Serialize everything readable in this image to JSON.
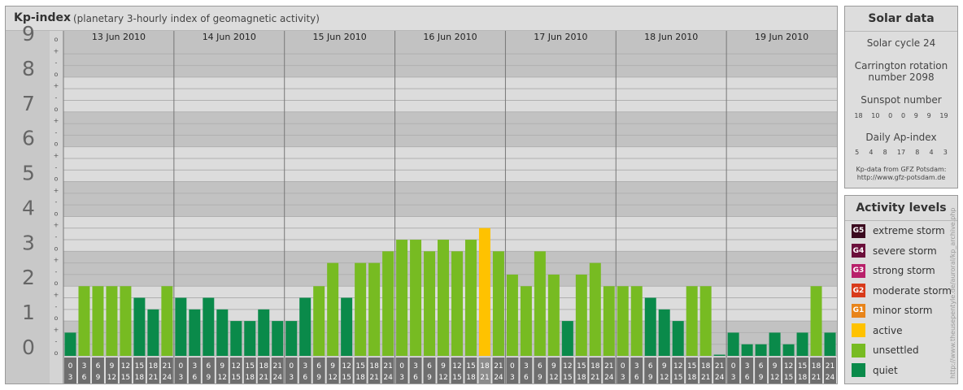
{
  "header": {
    "title": "Kp-index",
    "subtitle": "(planetary 3-hourly index of geomagnetic activity)"
  },
  "chart_data": {
    "type": "bar",
    "ylim": [
      0,
      9
    ],
    "y_major_labels": [
      "0",
      "1",
      "2",
      "3",
      "4",
      "5",
      "6",
      "7",
      "8",
      "9"
    ],
    "y_minor_labels": [
      "o",
      "-",
      "+"
    ],
    "days": [
      "13 Jun 2010",
      "14 Jun 2010",
      "15 Jun 2010",
      "16 Jun 2010",
      "17 Jun 2010",
      "18 Jun 2010",
      "19 Jun 2010"
    ],
    "interval_start_labels": [
      "0",
      "3",
      "6",
      "9",
      "12",
      "15",
      "18",
      "21"
    ],
    "interval_end_labels": [
      "3",
      "6",
      "9",
      "12",
      "15",
      "18",
      "21",
      "24"
    ],
    "values": [
      0.667,
      2.0,
      2.0,
      2.0,
      2.0,
      1.667,
      1.333,
      2.0,
      1.667,
      1.333,
      1.667,
      1.333,
      1.0,
      1.0,
      1.333,
      1.0,
      1.0,
      1.667,
      2.0,
      2.667,
      1.667,
      2.667,
      2.667,
      3.0,
      3.333,
      3.333,
      3.0,
      3.333,
      3.0,
      3.333,
      3.667,
      3.0,
      2.333,
      2.0,
      3.0,
      2.333,
      1.0,
      2.333,
      2.667,
      2.0,
      2.0,
      2.0,
      1.667,
      1.333,
      1.0,
      2.0,
      2.0,
      0.0,
      0.667,
      0.333,
      0.333,
      0.667,
      0.333,
      0.667,
      2.0,
      0.667
    ],
    "levels": [
      "quiet",
      "unsettled",
      "unsettled",
      "unsettled",
      "unsettled",
      "quiet",
      "quiet",
      "unsettled",
      "quiet",
      "quiet",
      "quiet",
      "quiet",
      "quiet",
      "quiet",
      "quiet",
      "quiet",
      "quiet",
      "quiet",
      "unsettled",
      "unsettled",
      "quiet",
      "unsettled",
      "unsettled",
      "unsettled",
      "unsettled",
      "unsettled",
      "unsettled",
      "unsettled",
      "unsettled",
      "unsettled",
      "active",
      "unsettled",
      "unsettled",
      "unsettled",
      "unsettled",
      "unsettled",
      "quiet",
      "unsettled",
      "unsettled",
      "unsettled",
      "unsettled",
      "unsettled",
      "quiet",
      "quiet",
      "quiet",
      "unsettled",
      "unsettled",
      "quiet",
      "quiet",
      "quiet",
      "quiet",
      "quiet",
      "quiet",
      "quiet",
      "unsettled",
      "quiet"
    ],
    "level_colors": {
      "quiet": "#0a8a4a",
      "unsettled": "#77bb22",
      "active": "#ffc200"
    }
  },
  "solar": {
    "title": "Solar data",
    "cycle": "Solar cycle 24",
    "carrington_line1": "Carrington rotation",
    "carrington_line2": "number 2098",
    "sunspot_label": "Sunspot number",
    "sunspot_values": [
      "18",
      "10",
      "0",
      "0",
      "9",
      "9",
      "19"
    ],
    "ap_label": "Daily Ap-index",
    "ap_values": [
      "5",
      "4",
      "8",
      "17",
      "8",
      "4",
      "3"
    ],
    "credit_line1": "Kp-data from GFZ Potsdam:",
    "credit_line2": "http://www.gfz-potsdam.de"
  },
  "activity": {
    "title": "Activity levels",
    "items": [
      {
        "code": "G5",
        "label": "extreme storm",
        "color": "#3b0a1f"
      },
      {
        "code": "G4",
        "label": "severe storm",
        "color": "#6b0f3b"
      },
      {
        "code": "G3",
        "label": "strong storm",
        "color": "#b8206a"
      },
      {
        "code": "G2",
        "label": "moderate storm",
        "color": "#d83a1a"
      },
      {
        "code": "G1",
        "label": "minor storm",
        "color": "#e8841a"
      },
      {
        "code": "",
        "label": "active",
        "color": "#ffc200"
      },
      {
        "code": "",
        "label": "unsettled",
        "color": "#77bb22"
      },
      {
        "code": "",
        "label": "quiet",
        "color": "#0a8a4a"
      }
    ]
  },
  "watermark": "http://www.theusepentyle.de/auroral/kp_archive.php"
}
